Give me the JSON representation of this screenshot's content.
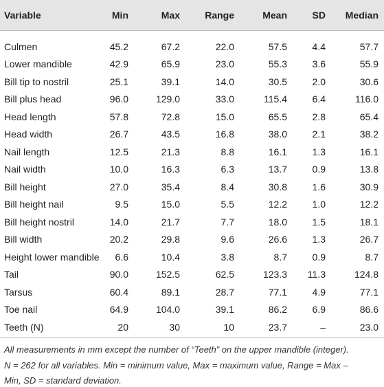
{
  "table": {
    "header": [
      "Variable",
      "Min",
      "Max",
      "Range",
      "Mean",
      "SD",
      "Median"
    ],
    "rows": [
      [
        "Culmen",
        "45.2",
        "67.2",
        "22.0",
        "57.5",
        "4.4",
        "57.7"
      ],
      [
        "Lower mandible",
        "42.9",
        "65.9",
        "23.0",
        "55.3",
        "3.6",
        "55.9"
      ],
      [
        "Bill tip to nostril",
        "25.1",
        "39.1",
        "14.0",
        "30.5",
        "2.0",
        "30.6"
      ],
      [
        "Bill plus head",
        "96.0",
        "129.0",
        "33.0",
        "115.4",
        "6.4",
        "116.0"
      ],
      [
        "Head length",
        "57.8",
        "72.8",
        "15.0",
        "65.5",
        "2.8",
        "65.4"
      ],
      [
        "Head width",
        "26.7",
        "43.5",
        "16.8",
        "38.0",
        "2.1",
        "38.2"
      ],
      [
        "Nail length",
        "12.5",
        "21.3",
        "8.8",
        "16.1",
        "1.3",
        "16.1"
      ],
      [
        "Nail width",
        "10.0",
        "16.3",
        "6.3",
        "13.7",
        "0.9",
        "13.8"
      ],
      [
        "Bill height",
        "27.0",
        "35.4",
        "8.4",
        "30.8",
        "1.6",
        "30.9"
      ],
      [
        "Bill height nail",
        "9.5",
        "15.0",
        "5.5",
        "12.2",
        "1.0",
        "12.2"
      ],
      [
        "Bill height nostril",
        "14.0",
        "21.7",
        "7.7",
        "18.0",
        "1.5",
        "18.1"
      ],
      [
        "Bill width",
        "20.2",
        "29.8",
        "9.6",
        "26.6",
        "1.3",
        "26.7"
      ],
      [
        "Height lower mandible",
        "6.6",
        "10.4",
        "3.8",
        "8.7",
        "0.9",
        "8.7"
      ],
      [
        "Tail",
        "90.0",
        "152.5",
        "62.5",
        "123.3",
        "11.3",
        "124.8"
      ],
      [
        "Tarsus",
        "60.4",
        "89.1",
        "28.7",
        "77.1",
        "4.9",
        "77.1"
      ],
      [
        "Toe nail",
        "64.9",
        "104.0",
        "39.1",
        "86.2",
        "6.9",
        "86.6"
      ],
      [
        "Teeth (N)",
        "20",
        "30",
        "10",
        "23.7",
        "–",
        "23.0"
      ]
    ]
  },
  "footnote": [
    "All measurements in mm except the number of “Teeth” on the upper mandible (integer).",
    "N = 262 for all variables. Min = minimum value, Max = maximum value, Range = Max –",
    "Min, SD = standard deviation."
  ]
}
